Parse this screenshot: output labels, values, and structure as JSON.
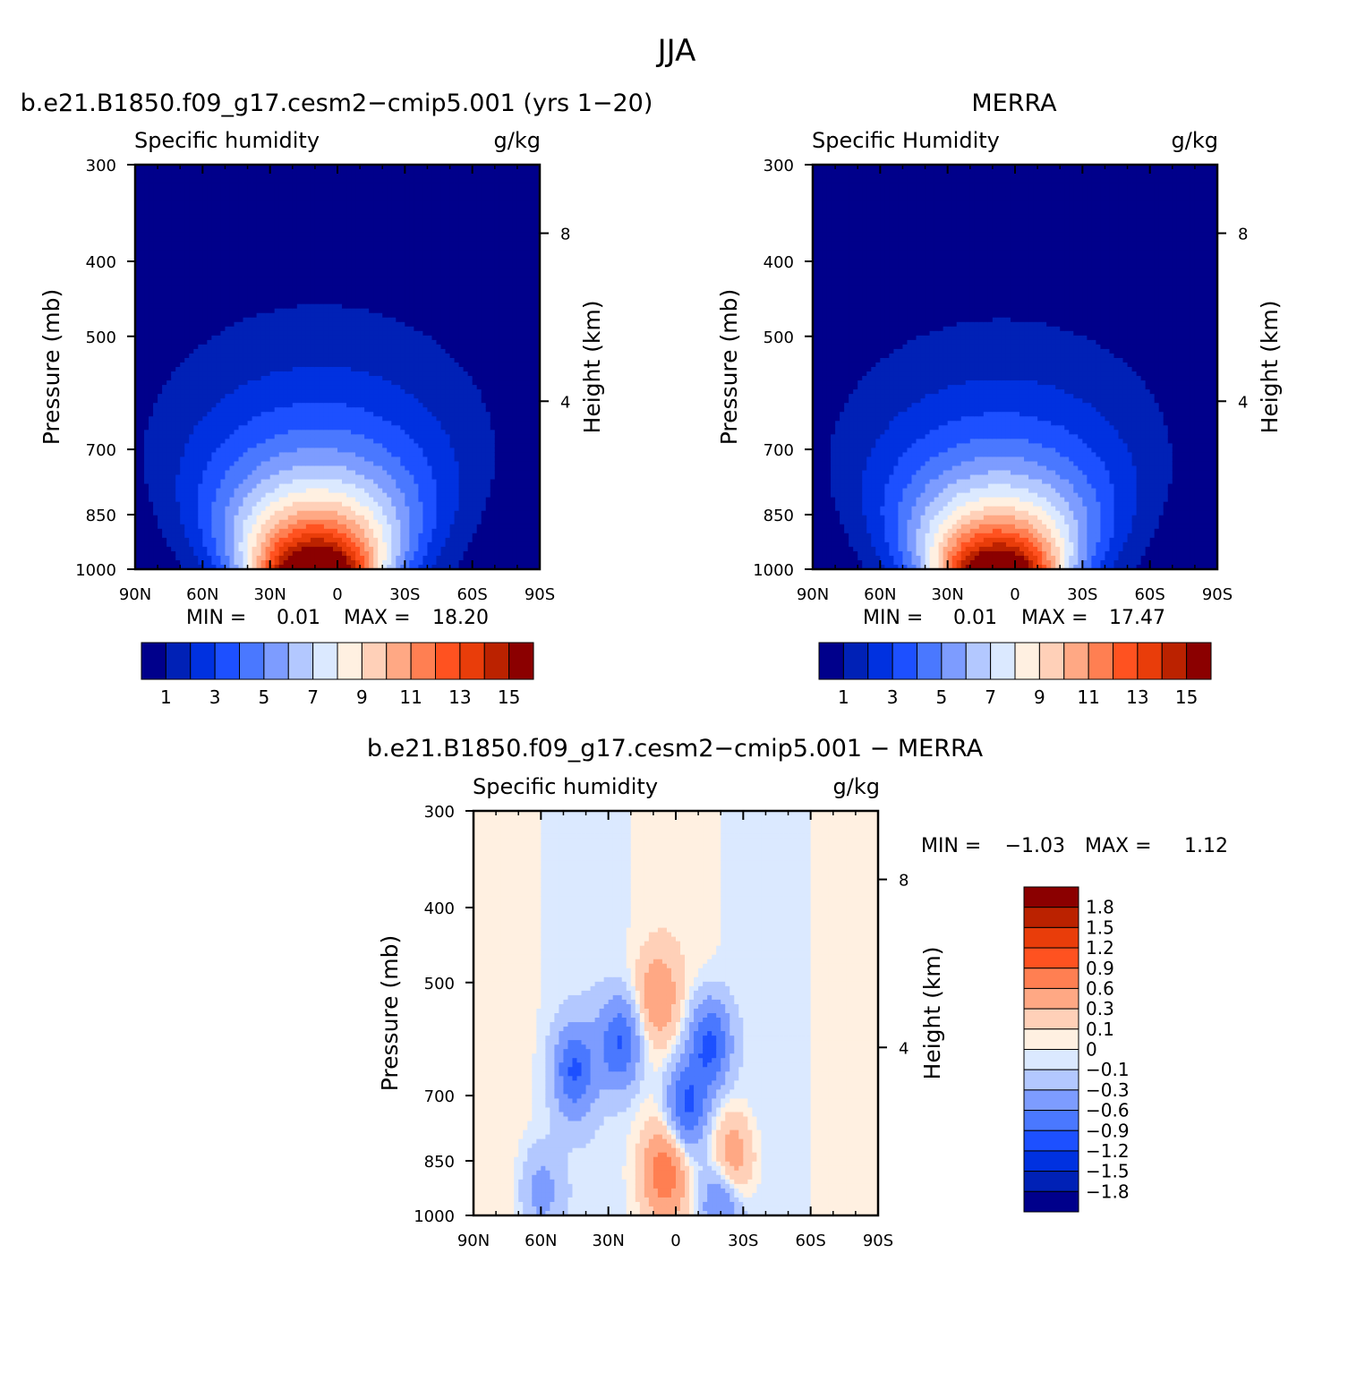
{
  "figure_title": "JJA",
  "panels": [
    {
      "id": "model",
      "heading": "b.e21.B1850.f09_g17.cesm2−cmip5.001 (yrs 1−20)",
      "variable": "Specific humidity",
      "units": "g/kg",
      "ylabel": "Pressure (mb)",
      "ylabel_right": "Height (km)",
      "stats": {
        "min_label": "MIN =",
        "min": "0.01",
        "max_label": "MAX =",
        "max": "18.20"
      }
    },
    {
      "id": "obs",
      "heading": "MERRA",
      "variable": "Specific Humidity",
      "units": "g/kg",
      "ylabel": "Pressure (mb)",
      "ylabel_right": "Height (km)",
      "stats": {
        "min_label": "MIN =",
        "min": "0.01",
        "max_label": "MAX =",
        "max": "17.47"
      }
    },
    {
      "id": "diff",
      "heading": "b.e21.B1850.f09_g17.cesm2−cmip5.001 − MERRA",
      "variable": "Specific humidity",
      "units": "g/kg",
      "ylabel": "Pressure (mb)",
      "ylabel_right": "Height (km)",
      "stats": {
        "min_label": "MIN =",
        "min": "−1.03",
        "max_label": "MAX =",
        "max": "1.12"
      }
    }
  ],
  "chart_data": [
    {
      "type": "heatmap",
      "panel": "model",
      "x_ticks": [
        "90N",
        "60N",
        "30N",
        "0",
        "30S",
        "60S",
        "90S"
      ],
      "x_values": [
        90,
        60,
        30,
        0,
        -30,
        -60,
        -90
      ],
      "y_ticks": [
        "300",
        "400",
        "500",
        "700",
        "850",
        "1000"
      ],
      "y_values": [
        300,
        400,
        500,
        700,
        850,
        1000
      ],
      "yscale": "log",
      "y2_ticks": [
        "8",
        "4"
      ],
      "y2_values": [
        8,
        4
      ],
      "levels": [
        1,
        2,
        3,
        4,
        5,
        6,
        7,
        8,
        9,
        10,
        11,
        12,
        13,
        14,
        15
      ],
      "colorbar_labels": [
        "1",
        "3",
        "5",
        "7",
        "9",
        "11",
        "13",
        "15"
      ],
      "colors": [
        "#00008b",
        "#0021b6",
        "#0031e0",
        "#1d50ff",
        "#4a78ff",
        "#7d9cff",
        "#b3c8ff",
        "#dbe9ff",
        "#fff0e1",
        "#ffd0b8",
        "#ffa884",
        "#ff7f52",
        "#ff5220",
        "#e93d0a",
        "#bb2200",
        "#8b0000"
      ],
      "peak": {
        "lat": 10,
        "value": 18.2
      }
    },
    {
      "type": "heatmap",
      "panel": "obs",
      "x_ticks": [
        "90N",
        "60N",
        "30N",
        "0",
        "30S",
        "60S",
        "90S"
      ],
      "x_values": [
        90,
        60,
        30,
        0,
        -30,
        -60,
        -90
      ],
      "y_ticks": [
        "300",
        "400",
        "500",
        "700",
        "850",
        "1000"
      ],
      "y_values": [
        300,
        400,
        500,
        700,
        850,
        1000
      ],
      "yscale": "log",
      "y2_ticks": [
        "8",
        "4"
      ],
      "y2_values": [
        8,
        4
      ],
      "levels": [
        1,
        2,
        3,
        4,
        5,
        6,
        7,
        8,
        9,
        10,
        11,
        12,
        13,
        14,
        15
      ],
      "colorbar_labels": [
        "1",
        "3",
        "5",
        "7",
        "9",
        "11",
        "13",
        "15"
      ],
      "colors": [
        "#00008b",
        "#0021b6",
        "#0031e0",
        "#1d50ff",
        "#4a78ff",
        "#7d9cff",
        "#b3c8ff",
        "#dbe9ff",
        "#fff0e1",
        "#ffd0b8",
        "#ffa884",
        "#ff7f52",
        "#ff5220",
        "#e93d0a",
        "#bb2200",
        "#8b0000"
      ],
      "peak": {
        "lat": 8,
        "value": 17.47
      }
    },
    {
      "type": "heatmap",
      "panel": "diff",
      "x_ticks": [
        "90N",
        "60N",
        "30N",
        "0",
        "30S",
        "60S",
        "90S"
      ],
      "x_values": [
        90,
        60,
        30,
        0,
        -30,
        -60,
        -90
      ],
      "y_ticks": [
        "300",
        "400",
        "500",
        "700",
        "850",
        "1000"
      ],
      "y_values": [
        300,
        400,
        500,
        700,
        850,
        1000
      ],
      "yscale": "log",
      "y2_ticks": [
        "8",
        "4"
      ],
      "y2_values": [
        8,
        4
      ],
      "levels": [
        -1.8,
        -1.5,
        -1.2,
        -0.9,
        -0.6,
        -0.3,
        -0.1,
        0,
        0.1,
        0.3,
        0.6,
        0.9,
        1.2,
        1.5,
        1.8
      ],
      "colorbar_labels": [
        "1.8",
        "1.5",
        "1.2",
        "0.9",
        "0.6",
        "0.3",
        "0.1",
        "0",
        "−0.1",
        "−0.3",
        "−0.6",
        "−0.9",
        "−1.2",
        "−1.5",
        "−1.8"
      ],
      "colors": [
        "#00008b",
        "#0021b6",
        "#0031e0",
        "#1d50ff",
        "#4a78ff",
        "#7d9cff",
        "#b3c8ff",
        "#dbe9ff",
        "#fff0e1",
        "#ffd0b8",
        "#ffa884",
        "#ff7f52",
        "#ff5220",
        "#e93d0a",
        "#bb2200",
        "#8b0000"
      ],
      "features": [
        {
          "lat": 5,
          "p": 880,
          "value": 0.8
        },
        {
          "lat": 8,
          "p": 520,
          "value": 0.5
        },
        {
          "lat": -25,
          "p": 850,
          "value": 0.6
        },
        {
          "lat": 45,
          "p": 650,
          "value": -0.9
        },
        {
          "lat": 25,
          "p": 600,
          "value": -0.9
        },
        {
          "lat": -5,
          "p": 720,
          "value": -1.0
        },
        {
          "lat": -15,
          "p": 600,
          "value": -1.0
        },
        {
          "lat": -20,
          "p": 960,
          "value": -0.7
        },
        {
          "lat": 60,
          "p": 930,
          "value": -0.4
        }
      ]
    }
  ]
}
